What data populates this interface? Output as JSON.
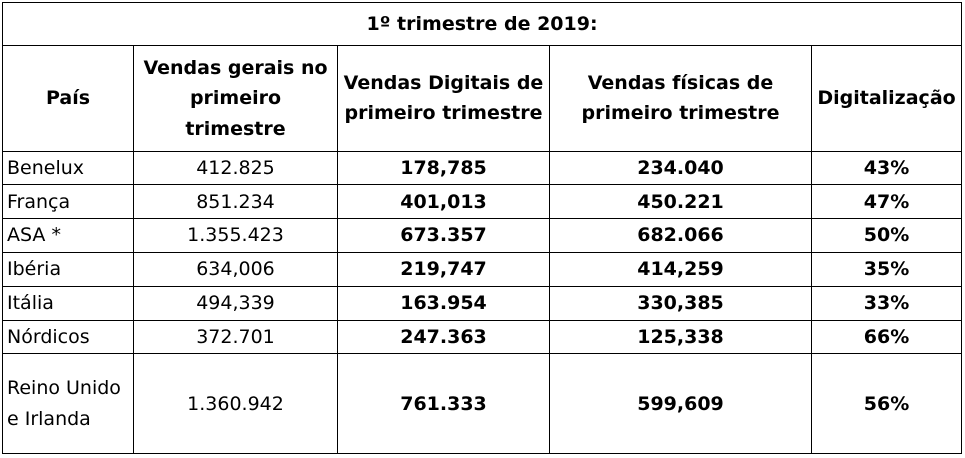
{
  "title": "1º trimestre de 2019:",
  "headers": {
    "country": "País",
    "total": "Vendas gerais no primeiro trimestre",
    "digital": "Vendas Digitais de primeiro trimestre",
    "physical": "Vendas físicas de primeiro trimestre",
    "share": "Digitalização"
  },
  "rows": [
    {
      "country": "Benelux",
      "total": "412.825",
      "digital": "178,785",
      "physical": "234.040",
      "share": "43%"
    },
    {
      "country": "França",
      "total": "851.234",
      "digital": "401,013",
      "physical": "450.221",
      "share": "47%"
    },
    {
      "country": "ASA *",
      "total": "1.355.423",
      "digital": "673.357",
      "physical": "682.066",
      "share": "50%"
    },
    {
      "country": "Ibéria",
      "total": "634,006",
      "digital": "219,747",
      "physical": "414,259",
      "share": "35%"
    },
    {
      "country": "Itália",
      "total": "494,339",
      "digital": "163.954",
      "physical": "330,385",
      "share": "33%"
    },
    {
      "country": "Nórdicos",
      "total": "372.701",
      "digital": "247.363",
      "physical": "125,338",
      "share": "66%"
    },
    {
      "country": "Reino Unido e Irlanda",
      "total": "1.360.942",
      "digital": "761.333",
      "physical": "599,609",
      "share": "56%"
    }
  ]
}
